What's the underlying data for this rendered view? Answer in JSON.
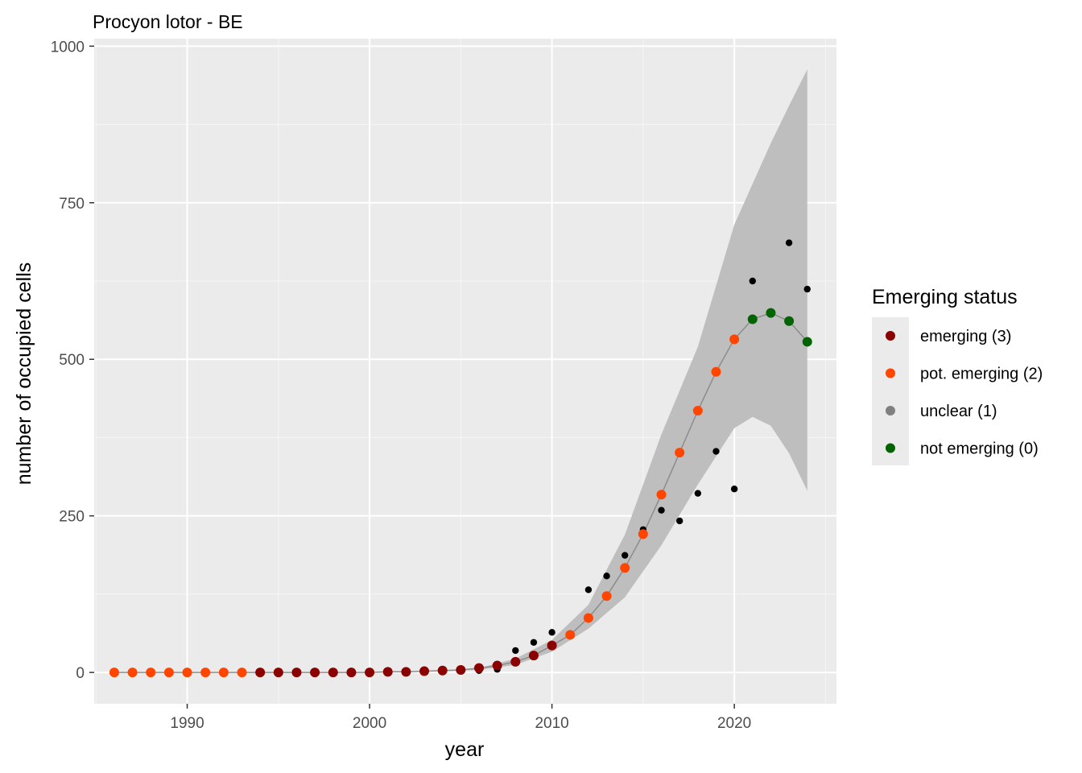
{
  "chart_data": {
    "type": "scatter",
    "title": "Procyon lotor - BE",
    "xlabel": "year",
    "ylabel": "number of occupied cells",
    "xlim": [
      1984.9,
      2025.6
    ],
    "ylim": [
      -50,
      1012
    ],
    "x_ticks": [
      1990,
      2000,
      2010,
      2020
    ],
    "y_ticks": [
      0,
      250,
      500,
      750,
      1000
    ],
    "x_tick_labels": [
      "1990",
      "2000",
      "2010",
      "2020"
    ],
    "y_tick_labels": [
      "0",
      "250",
      "500",
      "750",
      "1000"
    ],
    "grid": true,
    "legend": {
      "title": "Emerging status",
      "position": "right",
      "entries": [
        {
          "label": "emerging (3)",
          "color": "#8b0000"
        },
        {
          "label": "pot. emerging (2)",
          "color": "#ff4500"
        },
        {
          "label": "unclear (1)",
          "color": "#808080"
        },
        {
          "label": "not emerging (0)",
          "color": "#006400"
        }
      ]
    },
    "observed": {
      "color": "#000000",
      "x": [
        1986,
        1987,
        1988,
        1989,
        1990,
        1991,
        1992,
        1993,
        1994,
        1995,
        1996,
        1997,
        1998,
        1999,
        2000,
        2001,
        2002,
        2003,
        2004,
        2005,
        2006,
        2007,
        2008,
        2009,
        2010,
        2011,
        2012,
        2013,
        2014,
        2015,
        2016,
        2017,
        2018,
        2019,
        2020,
        2021,
        2022,
        2023,
        2024
      ],
      "y": [
        0,
        0,
        0,
        0,
        0,
        0,
        0,
        0,
        0,
        0,
        0,
        0,
        0,
        0,
        0,
        1,
        1,
        2,
        3,
        3,
        3,
        5,
        35,
        48,
        64,
        60,
        132,
        154,
        187,
        228,
        259,
        242,
        286,
        353,
        293,
        625,
        573,
        686,
        612
      ]
    },
    "fitted": {
      "x": [
        1986,
        1987,
        1988,
        1989,
        1990,
        1991,
        1992,
        1993,
        1994,
        1995,
        1996,
        1997,
        1998,
        1999,
        2000,
        2001,
        2002,
        2003,
        2004,
        2005,
        2006,
        2007,
        2008,
        2009,
        2010,
        2011,
        2012,
        2013,
        2014,
        2015,
        2016,
        2017,
        2018,
        2019,
        2020,
        2021,
        2022,
        2023,
        2024
      ],
      "y": [
        0,
        0,
        0,
        0,
        0,
        0,
        0,
        0,
        0,
        0,
        0,
        0,
        0,
        0,
        0,
        1,
        1,
        2,
        3,
        4,
        7,
        11,
        17,
        27,
        43,
        60,
        87,
        122,
        167,
        221,
        284,
        351,
        418,
        480,
        532,
        564,
        574,
        561,
        528
      ],
      "status": [
        2,
        2,
        2,
        2,
        2,
        2,
        2,
        2,
        3,
        3,
        3,
        3,
        3,
        3,
        3,
        3,
        3,
        3,
        3,
        3,
        3,
        3,
        3,
        3,
        3,
        2,
        2,
        2,
        2,
        2,
        2,
        2,
        2,
        2,
        2,
        0,
        0,
        0,
        0
      ]
    },
    "ribbon": {
      "color": "#bebebe",
      "x": [
        1986,
        2000,
        2004,
        2006,
        2008,
        2010,
        2012,
        2014,
        2016,
        2018,
        2020,
        2021,
        2022,
        2023,
        2024
      ],
      "lower": [
        0,
        0,
        2,
        4,
        12,
        33,
        70,
        120,
        203,
        300,
        390,
        408,
        394,
        350,
        290
      ],
      "upper": [
        0,
        0,
        3,
        7,
        22,
        52,
        108,
        220,
        380,
        520,
        715,
        780,
        845,
        905,
        963
      ]
    }
  }
}
